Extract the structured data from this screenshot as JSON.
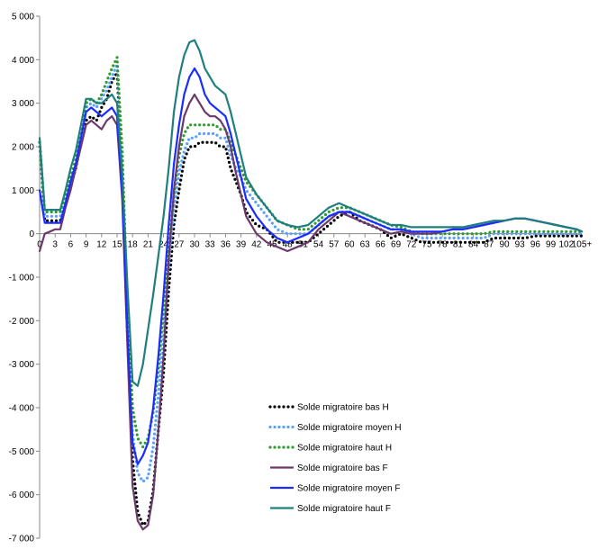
{
  "chart_data": {
    "type": "line",
    "title": "",
    "xlabel": "",
    "ylabel": "",
    "ylim": [
      -7000,
      5000
    ],
    "y_ticks": [
      5000,
      4000,
      3000,
      2000,
      1000,
      0,
      -1000,
      -2000,
      -3000,
      -4000,
      -5000,
      -6000,
      -7000
    ],
    "y_tick_labels": [
      "5 000",
      "4 000",
      "3 000",
      "2 000",
      "1 000",
      "0",
      "-1 000",
      "-2 000",
      "-3 000",
      "-4 000",
      "-5 000",
      "-6 000",
      "-7 000"
    ],
    "x_tick_labels": [
      "0",
      "3",
      "6",
      "9",
      "12",
      "15",
      "18",
      "21",
      "24",
      "27",
      "30",
      "33",
      "36",
      "39",
      "42",
      "45",
      "48",
      "51",
      "54",
      "57",
      "60",
      "63",
      "66",
      "69",
      "72",
      "75",
      "78",
      "81",
      "84",
      "87",
      "90",
      "93",
      "96",
      "99",
      "102",
      "105+"
    ],
    "x_min": 0,
    "x_max": 105,
    "grid": false,
    "legend_position": "bottom-right",
    "series": [
      {
        "name": "Solde migratoire bas H",
        "color": "#000000",
        "style": "dotted",
        "x": [
          0,
          1,
          2,
          3,
          4,
          5,
          6,
          7,
          8,
          9,
          10,
          11,
          12,
          13,
          14,
          15,
          16,
          17,
          18,
          19,
          20,
          21,
          22,
          23,
          24,
          25,
          26,
          27,
          28,
          29,
          30,
          31,
          32,
          33,
          34,
          35,
          36,
          37,
          38,
          39,
          40,
          42,
          44,
          46,
          48,
          50,
          52,
          54,
          56,
          58,
          60,
          62,
          64,
          66,
          68,
          70,
          72,
          74,
          76,
          78,
          80,
          82,
          84,
          86,
          88,
          90,
          92,
          94,
          96,
          98,
          100,
          102,
          104,
          105
        ],
        "values": [
          2100,
          300,
          300,
          300,
          300,
          700,
          1100,
          1500,
          2100,
          2600,
          2700,
          2600,
          2900,
          3100,
          3500,
          3700,
          1400,
          -2300,
          -5200,
          -6400,
          -6700,
          -6600,
          -5900,
          -4500,
          -3200,
          -1300,
          200,
          1000,
          1700,
          2000,
          2000,
          2100,
          2100,
          2100,
          2100,
          2000,
          2000,
          1500,
          1200,
          900,
          500,
          200,
          100,
          -200,
          -200,
          -200,
          -200,
          0,
          200,
          400,
          500,
          300,
          200,
          100,
          -100,
          0,
          -100,
          -200,
          -200,
          -200,
          -200,
          -200,
          -200,
          -200,
          -100,
          -100,
          -100,
          -100,
          -50,
          -50,
          -50,
          -50,
          -50,
          -50
        ]
      },
      {
        "name": "Solde migratoire moyen H",
        "color": "#5aa0ff",
        "style": "dotted",
        "x": [
          0,
          1,
          2,
          3,
          4,
          5,
          6,
          7,
          8,
          9,
          10,
          11,
          12,
          13,
          14,
          15,
          16,
          17,
          18,
          19,
          20,
          21,
          22,
          23,
          24,
          25,
          26,
          27,
          28,
          29,
          30,
          31,
          32,
          33,
          34,
          35,
          36,
          37,
          38,
          39,
          40,
          42,
          44,
          46,
          48,
          50,
          52,
          54,
          56,
          58,
          60,
          62,
          64,
          66,
          68,
          70,
          72,
          74,
          76,
          78,
          80,
          82,
          84,
          86,
          88,
          90,
          92,
          94,
          96,
          98,
          100,
          102,
          104,
          105
        ],
        "values": [
          2100,
          400,
          400,
          400,
          400,
          800,
          1200,
          1600,
          2200,
          2900,
          3000,
          2900,
          3100,
          3300,
          3600,
          3900,
          1600,
          -2000,
          -4600,
          -5500,
          -5700,
          -5600,
          -4900,
          -3700,
          -2400,
          -800,
          600,
          1400,
          1900,
          2200,
          2200,
          2300,
          2300,
          2300,
          2300,
          2200,
          2200,
          1800,
          1500,
          1300,
          1000,
          700,
          400,
          100,
          0,
          0,
          0,
          200,
          400,
          500,
          500,
          400,
          300,
          200,
          100,
          100,
          0,
          -100,
          -100,
          -100,
          -100,
          -100,
          -100,
          -100,
          0,
          0,
          0,
          0,
          0,
          0,
          0,
          0,
          0,
          0
        ]
      },
      {
        "name": "Solde migratoire haut H",
        "color": "#2f9b2f",
        "style": "dotted",
        "x": [
          0,
          1,
          2,
          3,
          4,
          5,
          6,
          7,
          8,
          9,
          10,
          11,
          12,
          13,
          14,
          15,
          16,
          17,
          18,
          19,
          20,
          21,
          22,
          23,
          24,
          25,
          26,
          27,
          28,
          29,
          30,
          31,
          32,
          33,
          34,
          35,
          36,
          37,
          38,
          39,
          40,
          42,
          44,
          46,
          48,
          50,
          52,
          54,
          56,
          58,
          60,
          62,
          64,
          66,
          68,
          70,
          72,
          74,
          76,
          78,
          80,
          82,
          84,
          86,
          88,
          90,
          92,
          94,
          96,
          98,
          100,
          102,
          104,
          105
        ],
        "values": [
          2100,
          500,
          500,
          500,
          500,
          900,
          1300,
          1700,
          2300,
          3000,
          3100,
          3000,
          3200,
          3500,
          3800,
          4050,
          1900,
          -1700,
          -4000,
          -4700,
          -4900,
          -4700,
          -4100,
          -3100,
          -1800,
          -400,
          900,
          1800,
          2300,
          2500,
          2500,
          2500,
          2500,
          2500,
          2500,
          2400,
          2400,
          2100,
          1800,
          1500,
          1200,
          900,
          600,
          300,
          200,
          100,
          100,
          300,
          500,
          600,
          600,
          500,
          400,
          300,
          200,
          150,
          50,
          0,
          0,
          0,
          0,
          0,
          0,
          0,
          50,
          50,
          50,
          50,
          50,
          50,
          50,
          50,
          50,
          50
        ]
      },
      {
        "name": "Solde migratoire bas F",
        "color": "#6b3a6b",
        "style": "solid",
        "x": [
          0,
          1,
          2,
          3,
          4,
          5,
          6,
          7,
          8,
          9,
          10,
          11,
          12,
          13,
          14,
          15,
          16,
          17,
          18,
          19,
          20,
          21,
          22,
          23,
          24,
          25,
          26,
          27,
          28,
          29,
          30,
          31,
          32,
          33,
          34,
          35,
          36,
          37,
          38,
          39,
          40,
          42,
          44,
          46,
          48,
          50,
          52,
          54,
          56,
          58,
          60,
          62,
          64,
          66,
          68,
          70,
          72,
          74,
          76,
          78,
          80,
          82,
          84,
          86,
          88,
          90,
          92,
          94,
          96,
          98,
          100,
          102,
          104,
          105
        ],
        "values": [
          -400,
          0,
          50,
          100,
          100,
          600,
          1000,
          1500,
          2000,
          2500,
          2600,
          2500,
          2400,
          2600,
          2700,
          2500,
          800,
          -2600,
          -5800,
          -6600,
          -6800,
          -6700,
          -6000,
          -4500,
          -2800,
          -600,
          1000,
          2000,
          2700,
          3000,
          3200,
          3000,
          2800,
          2700,
          2700,
          2600,
          2400,
          2000,
          1400,
          900,
          400,
          0,
          -200,
          -300,
          -400,
          -300,
          -200,
          100,
          300,
          500,
          400,
          300,
          200,
          100,
          0,
          50,
          0,
          0,
          0,
          50,
          100,
          100,
          150,
          200,
          250,
          300,
          350,
          350,
          300,
          250,
          200,
          150,
          100,
          50
        ]
      },
      {
        "name": "Solde migratoire moyen F",
        "color": "#1a2cff",
        "style": "solid",
        "x": [
          0,
          1,
          2,
          3,
          4,
          5,
          6,
          7,
          8,
          9,
          10,
          11,
          12,
          13,
          14,
          15,
          16,
          17,
          18,
          19,
          20,
          21,
          22,
          23,
          24,
          25,
          26,
          27,
          28,
          29,
          30,
          31,
          32,
          33,
          34,
          35,
          36,
          37,
          38,
          39,
          40,
          42,
          44,
          46,
          48,
          50,
          52,
          54,
          56,
          58,
          60,
          62,
          64,
          66,
          68,
          70,
          72,
          74,
          76,
          78,
          80,
          82,
          84,
          86,
          88,
          90,
          92,
          94,
          96,
          98,
          100,
          102,
          104,
          105
        ],
        "values": [
          1000,
          250,
          250,
          250,
          250,
          700,
          1200,
          1600,
          2200,
          2800,
          2900,
          2800,
          2700,
          2800,
          2900,
          2700,
          1000,
          -2200,
          -4800,
          -5300,
          -5100,
          -4800,
          -4000,
          -2800,
          -1400,
          200,
          1600,
          2500,
          3200,
          3600,
          3800,
          3600,
          3200,
          3000,
          2900,
          2800,
          2700,
          2300,
          1800,
          1300,
          800,
          400,
          100,
          -100,
          -200,
          -100,
          0,
          200,
          400,
          500,
          500,
          400,
          300,
          200,
          100,
          100,
          50,
          50,
          50,
          50,
          100,
          100,
          150,
          200,
          250,
          300,
          350,
          350,
          300,
          250,
          200,
          150,
          100,
          50
        ]
      },
      {
        "name": "Solde migratoire haut F",
        "color": "#1f7f7f",
        "style": "solid",
        "x": [
          0,
          1,
          2,
          3,
          4,
          5,
          6,
          7,
          8,
          9,
          10,
          11,
          12,
          13,
          14,
          15,
          16,
          17,
          18,
          19,
          20,
          21,
          22,
          23,
          24,
          25,
          26,
          27,
          28,
          29,
          30,
          31,
          32,
          33,
          34,
          35,
          36,
          37,
          38,
          39,
          40,
          42,
          44,
          46,
          48,
          50,
          52,
          54,
          56,
          58,
          60,
          62,
          64,
          66,
          68,
          70,
          72,
          74,
          76,
          78,
          80,
          82,
          84,
          86,
          88,
          90,
          92,
          94,
          96,
          98,
          100,
          102,
          104,
          105
        ],
        "values": [
          2200,
          550,
          550,
          550,
          550,
          1000,
          1500,
          1900,
          2500,
          3100,
          3100,
          3000,
          3000,
          3100,
          3200,
          3000,
          1400,
          -1200,
          -3400,
          -3500,
          -3000,
          -2200,
          -1400,
          -500,
          400,
          1500,
          2800,
          3600,
          4100,
          4400,
          4450,
          4200,
          3800,
          3600,
          3400,
          3300,
          3200,
          2800,
          2300,
          1800,
          1300,
          900,
          600,
          300,
          200,
          150,
          200,
          400,
          600,
          700,
          600,
          500,
          400,
          300,
          200,
          200,
          150,
          150,
          150,
          150,
          150,
          150,
          200,
          250,
          300,
          300,
          350,
          350,
          300,
          250,
          200,
          150,
          100,
          50
        ]
      }
    ]
  }
}
